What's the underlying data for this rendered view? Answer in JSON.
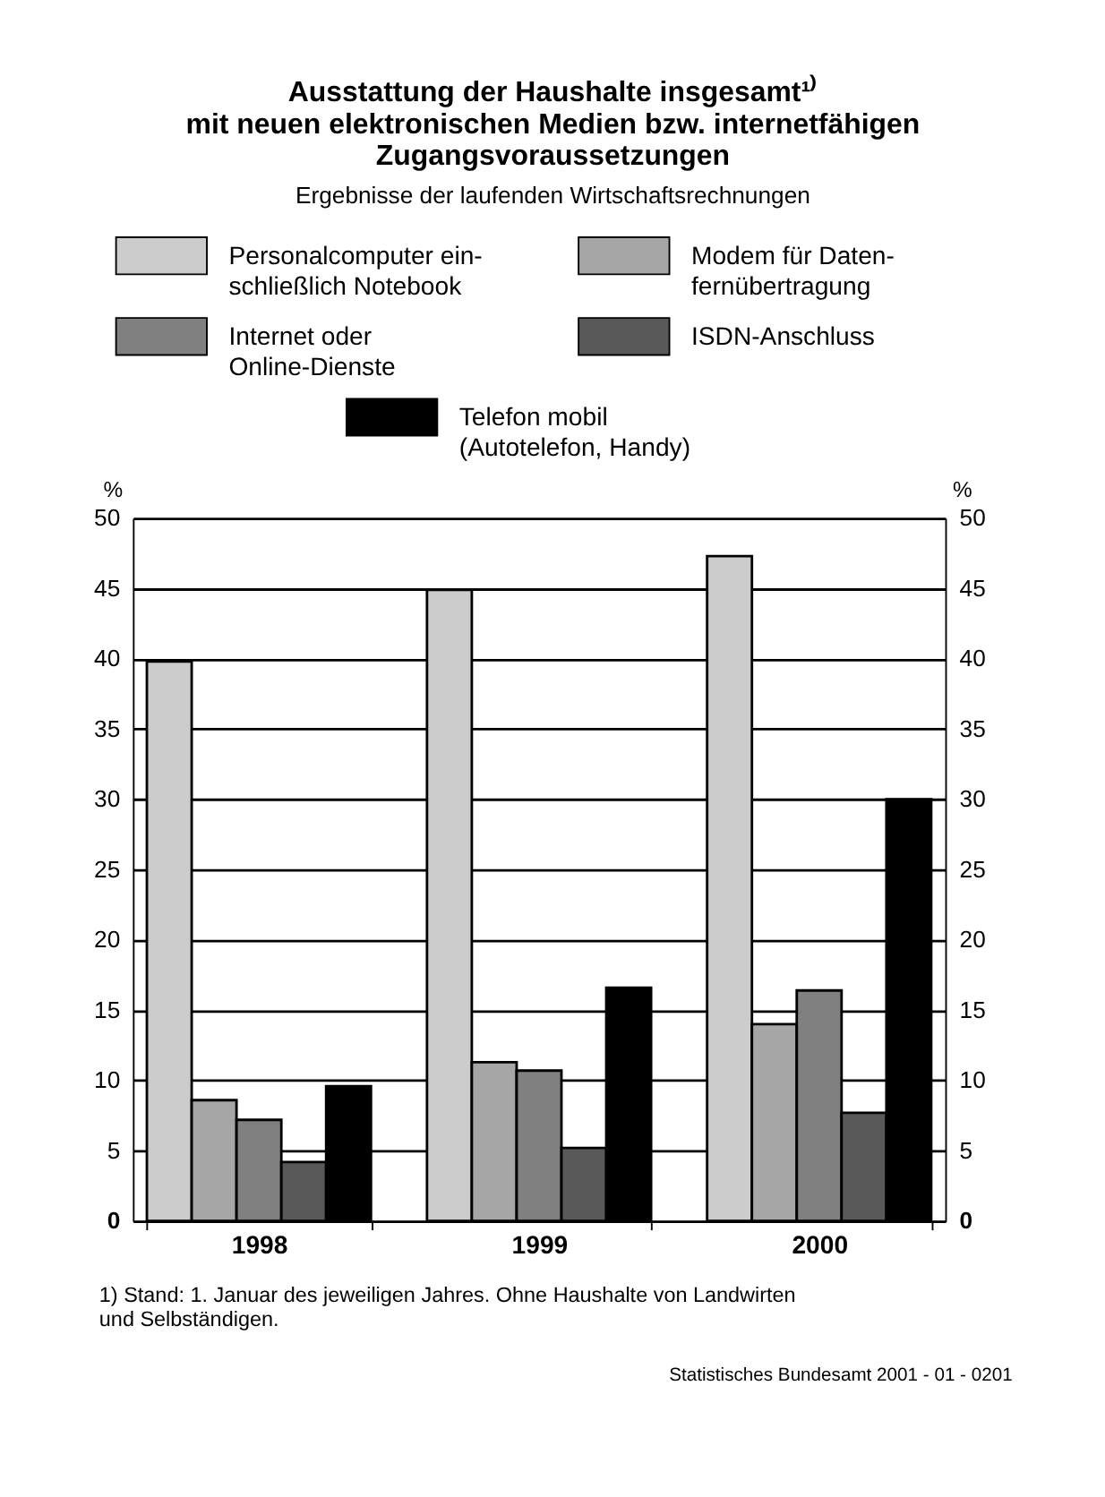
{
  "chart_data": {
    "type": "bar",
    "title": "Ausstattung der Haushalte insgesamt¹⁾\nmit neuen elektronischen Medien bzw. internetfähigen\nZugangsvoraussetzungen",
    "subtitle": "Ergebnisse der laufenden Wirtschaftsrechnungen",
    "ylabel": "%",
    "y2label": "%",
    "categories": [
      "1998",
      "1999",
      "2000"
    ],
    "series": [
      {
        "name": "Personalcomputer ein-\nschließlich Notebook",
        "color": "#cccccc",
        "values": [
          39.8,
          44.9,
          47.3
        ]
      },
      {
        "name": "Modem für Daten-\nfernübertragung",
        "color": "#a6a6a6",
        "values": [
          8.6,
          11.3,
          14.0
        ]
      },
      {
        "name": "Internet oder\nOnline-Dienste",
        "color": "#808080",
        "values": [
          7.2,
          10.7,
          16.4
        ]
      },
      {
        "name": "ISDN-Anschluss",
        "color": "#595959",
        "values": [
          4.2,
          5.2,
          7.7
        ]
      },
      {
        "name": "Telefon mobil\n(Autotelefon, Handy)",
        "color": "#000000",
        "values": [
          9.6,
          16.6,
          30.0
        ]
      }
    ],
    "ylim": [
      0,
      50
    ],
    "yticks": [
      0,
      5,
      10,
      15,
      20,
      25,
      30,
      35,
      40,
      45,
      50
    ],
    "y2lim": [
      0,
      50
    ],
    "y2ticks": [
      0,
      5,
      10,
      15,
      20,
      25,
      30,
      35,
      40,
      45,
      50
    ],
    "grid": "y",
    "legend": "top",
    "annotations": [
      "1) Stand: 1. Januar des jeweiligen Jahres. Ohne Haushalte von Landwirten\nund Selbständigen.",
      "Statistisches Bundesamt 2001 - 01 - 0201"
    ]
  }
}
